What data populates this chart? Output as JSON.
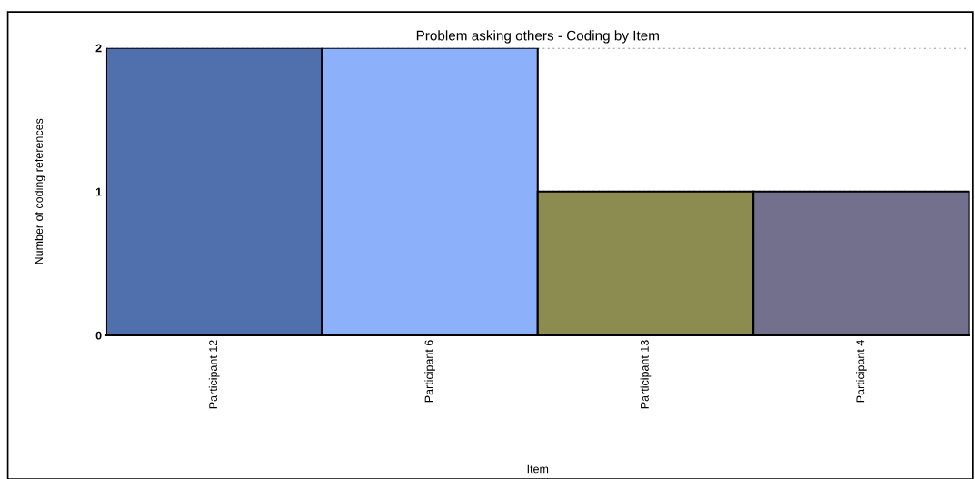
{
  "chart_data": {
    "type": "bar",
    "title": "Problem asking others - Coding by Item",
    "xlabel": "Item",
    "ylabel": "Number of coding references",
    "categories": [
      "Participant 12",
      "Participant 6",
      "Participant 13",
      "Participant 4"
    ],
    "values": [
      2,
      2,
      1,
      1
    ],
    "colors": [
      "#4f70ad",
      "#8db0fb",
      "#8c8c50",
      "#72708c"
    ],
    "ylim": [
      0,
      2
    ],
    "yticks": [
      0,
      1,
      2
    ],
    "grid": "y",
    "legend": false
  }
}
